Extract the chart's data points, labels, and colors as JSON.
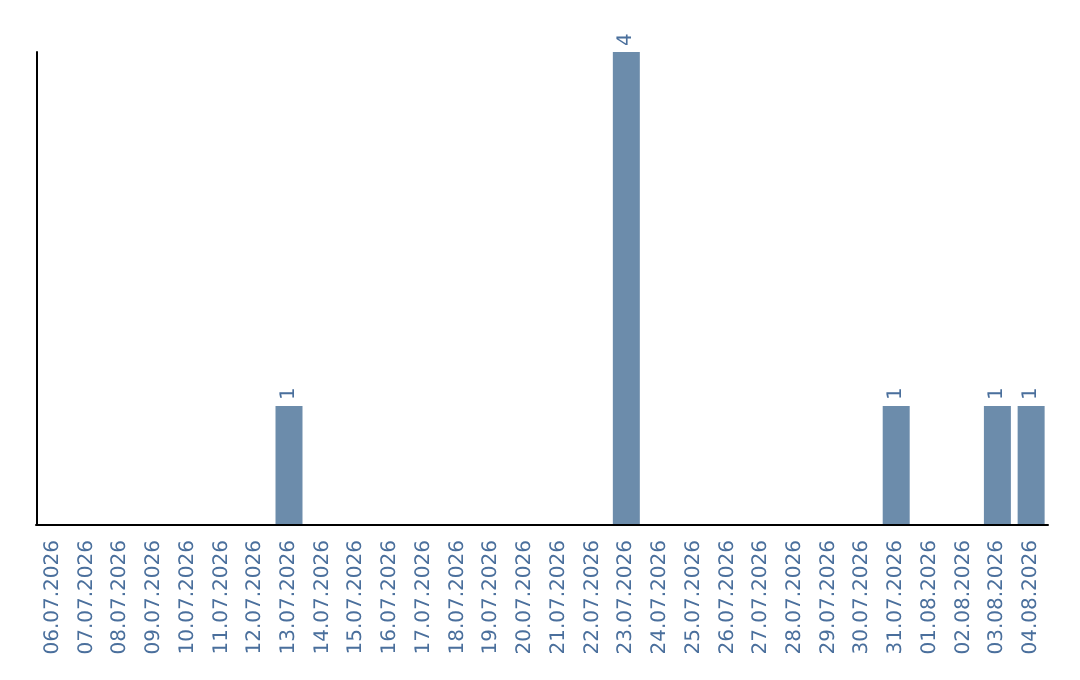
{
  "chart_data": {
    "type": "bar",
    "categories": [
      "06.07.2026",
      "07.07.2026",
      "08.07.2026",
      "09.07.2026",
      "10.07.2026",
      "11.07.2026",
      "12.07.2026",
      "13.07.2026",
      "14.07.2026",
      "15.07.2026",
      "16.07.2026",
      "17.07.2026",
      "18.07.2026",
      "19.07.2026",
      "20.07.2026",
      "21.07.2026",
      "22.07.2026",
      "23.07.2026",
      "24.07.2026",
      "25.07.2026",
      "26.07.2026",
      "27.07.2026",
      "28.07.2026",
      "29.07.2026",
      "30.07.2026",
      "31.07.2026",
      "01.08.2026",
      "02.08.2026",
      "03.08.2026",
      "04.08.2026"
    ],
    "values": [
      0,
      0,
      0,
      0,
      0,
      0,
      0,
      1,
      0,
      0,
      0,
      0,
      0,
      0,
      0,
      0,
      0,
      4,
      0,
      0,
      0,
      0,
      0,
      0,
      0,
      1,
      0,
      0,
      1,
      1
    ],
    "value_labels": [
      null,
      null,
      null,
      null,
      null,
      null,
      null,
      "1",
      null,
      null,
      null,
      null,
      null,
      null,
      null,
      null,
      null,
      "4",
      null,
      null,
      null,
      null,
      null,
      null,
      null,
      "1",
      null,
      null,
      "1",
      "1"
    ],
    "color": "#6c8cab",
    "grid": false,
    "tick_labels": "x"
  }
}
